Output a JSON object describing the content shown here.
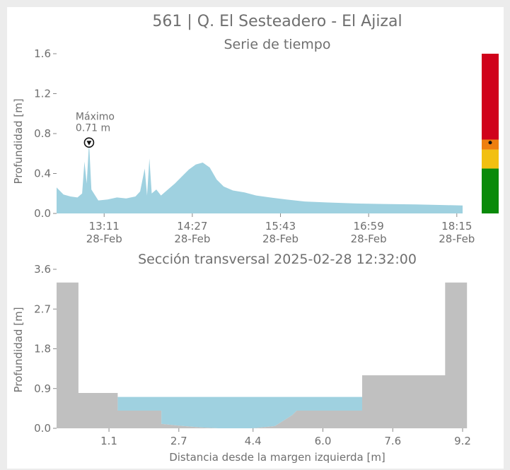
{
  "page": {
    "title": "561 | Q. El Sesteadero - El Ajizal"
  },
  "chart_data": [
    {
      "type": "area",
      "title": "Serie de tiempo",
      "xlabel": "",
      "ylabel": "Profundidad [m]",
      "ylim": [
        0,
        1.6
      ],
      "yticks": [
        "0.0",
        "0.4",
        "0.8",
        "1.2",
        "1.6"
      ],
      "xlim": [
        "2025-02-28 12:30",
        "2025-02-28 18:20"
      ],
      "xticks": [
        {
          "time": "2025-02-28 13:11",
          "label_time": "13:11",
          "label_date": "28-Feb"
        },
        {
          "time": "2025-02-28 14:27",
          "label_time": "14:27",
          "label_date": "28-Feb"
        },
        {
          "time": "2025-02-28 15:43",
          "label_time": "15:43",
          "label_date": "28-Feb"
        },
        {
          "time": "2025-02-28 16:59",
          "label_time": "16:59",
          "label_date": "28-Feb"
        },
        {
          "time": "2025-02-28 18:15",
          "label_time": "18:15",
          "label_date": "28-Feb"
        }
      ],
      "series": [
        {
          "color": "#9fd1e0",
          "points": [
            [
              "2025-02-28 12:30",
              0.26
            ],
            [
              "2025-02-28 12:36",
              0.19
            ],
            [
              "2025-02-28 12:42",
              0.17
            ],
            [
              "2025-02-28 12:48",
              0.16
            ],
            [
              "2025-02-28 12:52",
              0.2
            ],
            [
              "2025-02-28 12:54",
              0.52
            ],
            [
              "2025-02-28 12:56",
              0.3
            ],
            [
              "2025-02-28 12:58",
              0.71
            ],
            [
              "2025-02-28 13:00",
              0.24
            ],
            [
              "2025-02-28 13:06",
              0.13
            ],
            [
              "2025-02-28 13:14",
              0.14
            ],
            [
              "2025-02-28 13:22",
              0.16
            ],
            [
              "2025-02-28 13:30",
              0.15
            ],
            [
              "2025-02-28 13:38",
              0.17
            ],
            [
              "2025-02-28 13:42",
              0.22
            ],
            [
              "2025-02-28 13:46",
              0.45
            ],
            [
              "2025-02-28 13:48",
              0.18
            ],
            [
              "2025-02-28 13:50",
              0.55
            ],
            [
              "2025-02-28 13:52",
              0.2
            ],
            [
              "2025-02-28 13:56",
              0.24
            ],
            [
              "2025-02-28 14:00",
              0.18
            ],
            [
              "2025-02-28 14:06",
              0.24
            ],
            [
              "2025-02-28 14:12",
              0.3
            ],
            [
              "2025-02-28 14:18",
              0.37
            ],
            [
              "2025-02-28 14:24",
              0.44
            ],
            [
              "2025-02-28 14:30",
              0.49
            ],
            [
              "2025-02-28 14:36",
              0.51
            ],
            [
              "2025-02-28 14:42",
              0.46
            ],
            [
              "2025-02-28 14:48",
              0.34
            ],
            [
              "2025-02-28 14:54",
              0.27
            ],
            [
              "2025-02-28 15:02",
              0.23
            ],
            [
              "2025-02-28 15:12",
              0.21
            ],
            [
              "2025-02-28 15:22",
              0.18
            ],
            [
              "2025-02-28 15:34",
              0.16
            ],
            [
              "2025-02-28 15:48",
              0.14
            ],
            [
              "2025-02-28 16:04",
              0.12
            ],
            [
              "2025-02-28 16:24",
              0.11
            ],
            [
              "2025-02-28 16:48",
              0.1
            ],
            [
              "2025-02-28 17:12",
              0.095
            ],
            [
              "2025-02-28 17:40",
              0.09
            ],
            [
              "2025-02-28 18:00",
              0.085
            ],
            [
              "2025-02-28 18:20",
              0.08
            ]
          ]
        }
      ],
      "annotation": {
        "label": "Máximo",
        "value_text": "0.71 m",
        "time": "2025-02-28 12:58",
        "value": 0.71
      }
    },
    {
      "type": "area",
      "title": "Sección transversal 2025-02-28 12:32:00",
      "xlabel": "Distancia desde la margen izquierda [m]",
      "ylabel": "Profundidad [m]",
      "xlim": [
        -0.1,
        9.2
      ],
      "ylim": [
        0,
        3.6
      ],
      "xticks": [
        "1.1",
        "2.7",
        "4.4",
        "6.0",
        "7.6",
        "9.2"
      ],
      "yticks": [
        "0.0",
        "0.9",
        "1.8",
        "2.7",
        "3.6"
      ],
      "ground": {
        "color": "#c0c0c0",
        "points": [
          [
            -0.1,
            3.3
          ],
          [
            0.4,
            3.3
          ],
          [
            0.4,
            0.8
          ],
          [
            1.3,
            0.8
          ],
          [
            1.3,
            0.4
          ],
          [
            2.3,
            0.4
          ],
          [
            2.3,
            0.1
          ],
          [
            2.7,
            0.06
          ],
          [
            3.2,
            0.02
          ],
          [
            3.6,
            0.0
          ],
          [
            4.4,
            0.0
          ],
          [
            4.9,
            0.05
          ],
          [
            5.3,
            0.3
          ],
          [
            5.4,
            0.4
          ],
          [
            6.9,
            0.4
          ],
          [
            6.9,
            1.2
          ],
          [
            8.8,
            1.2
          ],
          [
            8.8,
            3.3
          ],
          [
            9.3,
            3.3
          ],
          [
            9.3,
            0.0
          ],
          [
            -0.1,
            0.0
          ]
        ]
      },
      "water": {
        "color": "#9fd1e0",
        "level": 0.71,
        "points": [
          [
            1.3,
            0.71
          ],
          [
            6.9,
            0.71
          ],
          [
            6.9,
            0.4
          ],
          [
            5.4,
            0.4
          ],
          [
            5.3,
            0.3
          ],
          [
            4.9,
            0.05
          ],
          [
            4.4,
            0.0
          ],
          [
            3.6,
            0.0
          ],
          [
            3.2,
            0.02
          ],
          [
            2.7,
            0.06
          ],
          [
            2.3,
            0.1
          ],
          [
            2.3,
            0.4
          ],
          [
            1.3,
            0.4
          ]
        ]
      }
    }
  ],
  "alert_bar": {
    "ylim": [
      0,
      1.6
    ],
    "current_value": 0.71,
    "levels": [
      {
        "from": 0.0,
        "to": 0.45,
        "color": "#0a8a0a"
      },
      {
        "from": 0.45,
        "to": 0.64,
        "color": "#f2c010"
      },
      {
        "from": 0.64,
        "to": 0.74,
        "color": "#ee7f10"
      },
      {
        "from": 0.74,
        "to": 1.6,
        "color": "#d0021b"
      }
    ]
  }
}
